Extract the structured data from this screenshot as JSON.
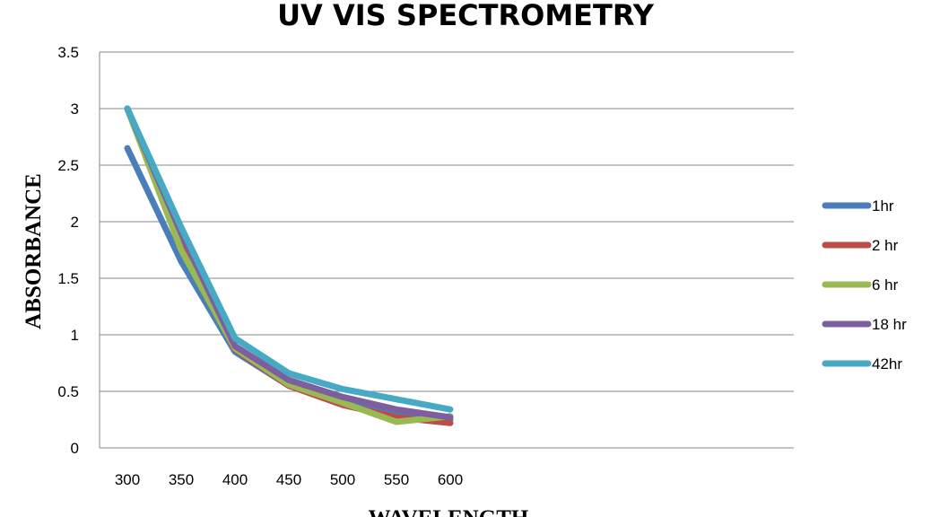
{
  "chart_data": {
    "type": "line",
    "title": "UV VIS SPECTROMETRY",
    "xlabel": "WAVELENGTH",
    "ylabel": "ABSORBANCE",
    "categories": [
      "300",
      "350",
      "400",
      "450",
      "500",
      "550",
      "600"
    ],
    "ylim": [
      0,
      3.5
    ],
    "yticks": [
      "0",
      "0.5",
      "1",
      "1.5",
      "2",
      "2.5",
      "3",
      "3.5"
    ],
    "grid": true,
    "legend_position": "right",
    "series": [
      {
        "name": "1hr",
        "color": "#4a7ebb",
        "values": [
          2.65,
          1.65,
          0.85,
          0.55,
          0.4,
          0.3,
          0.25
        ]
      },
      {
        "name": "2 hr",
        "color": "#be4b48",
        "values": [
          3.0,
          1.8,
          0.87,
          0.55,
          0.38,
          0.27,
          0.22
        ]
      },
      {
        "name": "6 hr",
        "color": "#98b954",
        "values": [
          3.0,
          1.75,
          0.88,
          0.56,
          0.4,
          0.23,
          0.28
        ]
      },
      {
        "name": "18 hr",
        "color": "#7d5fa0",
        "values": [
          3.0,
          1.9,
          0.9,
          0.6,
          0.45,
          0.34,
          0.27
        ]
      },
      {
        "name": "42hr",
        "color": "#46aac5",
        "values": [
          3.0,
          1.95,
          0.97,
          0.66,
          0.52,
          0.43,
          0.34
        ]
      }
    ]
  }
}
